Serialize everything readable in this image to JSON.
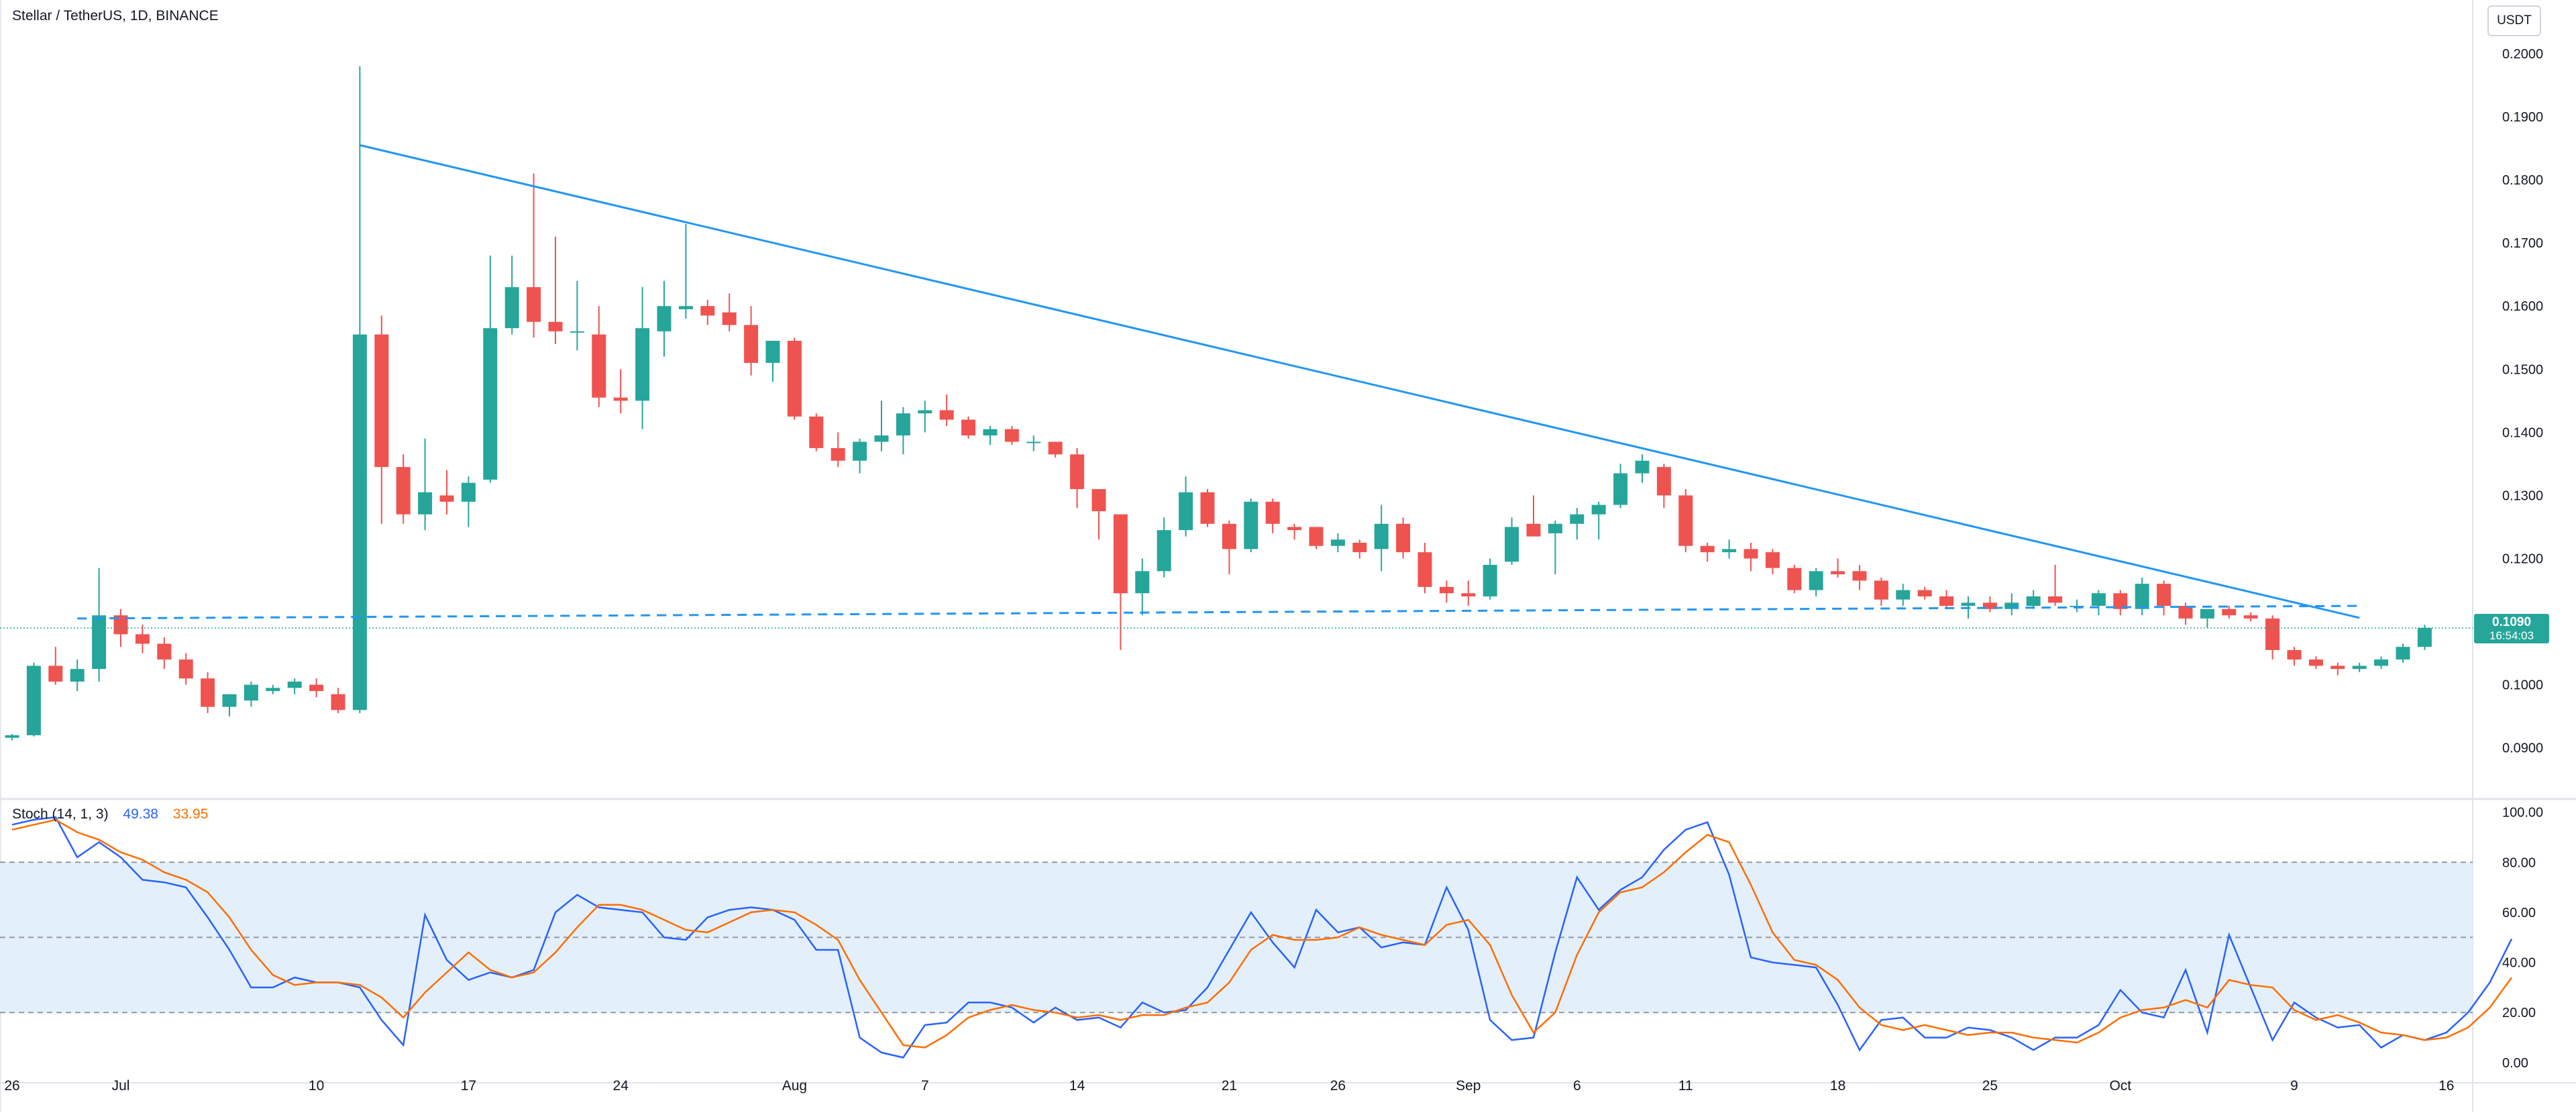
{
  "header": {
    "symbol_line": "Stellar / TetherUS, 1D, BINANCE",
    "currency": "USDT"
  },
  "price_badge": {
    "price": "0.1090",
    "countdown": "16:54:03",
    "color": "#26a69a"
  },
  "stoch_header": {
    "label": "Stoch (14, 1, 3)",
    "k_value": "49.38",
    "d_value": "33.95"
  },
  "colors": {
    "up": "#26a69a",
    "down": "#ef5350",
    "trendline": "#2196f3",
    "stoch_k": "#2962ff",
    "stoch_d": "#ff6d00",
    "band_fill": "#e3f0fb"
  },
  "chart_data": [
    {
      "type": "candlestick",
      "title": "Stellar / TetherUS, 1D, BINANCE",
      "ylim": [
        0.082,
        0.2085
      ],
      "yticks": [
        "0.2000",
        "0.1900",
        "0.1800",
        "0.1700",
        "0.1600",
        "0.1500",
        "0.1400",
        "0.1300",
        "0.1200",
        "0.1100",
        "0.1000",
        "0.0900"
      ],
      "xticks": [
        {
          "label": "26",
          "index": 0
        },
        {
          "label": "Jul",
          "index": 5
        },
        {
          "label": "10",
          "index": 14
        },
        {
          "label": "17",
          "index": 21
        },
        {
          "label": "24",
          "index": 28
        },
        {
          "label": "Aug",
          "index": 36
        },
        {
          "label": "7",
          "index": 42
        },
        {
          "label": "14",
          "index": 49
        },
        {
          "label": "21",
          "index": 56
        },
        {
          "label": "26",
          "index": 61
        },
        {
          "label": "Sep",
          "index": 67
        },
        {
          "label": "6",
          "index": 72
        },
        {
          "label": "11",
          "index": 77
        },
        {
          "label": "18",
          "index": 84
        },
        {
          "label": "25",
          "index": 91
        },
        {
          "label": "Oct",
          "index": 97
        },
        {
          "label": "9",
          "index": 105
        },
        {
          "label": "16",
          "index": 112
        }
      ],
      "ohlc": [
        [
          0.0916,
          0.0922,
          0.0912,
          0.092
        ],
        [
          0.092,
          0.1035,
          0.0918,
          0.103
        ],
        [
          0.103,
          0.106,
          0.1,
          0.1005
        ],
        [
          0.1005,
          0.104,
          0.099,
          0.1025
        ],
        [
          0.1025,
          0.1185,
          0.1005,
          0.111
        ],
        [
          0.111,
          0.112,
          0.106,
          0.108
        ],
        [
          0.108,
          0.1095,
          0.105,
          0.1065
        ],
        [
          0.1065,
          0.1075,
          0.1025,
          0.104
        ],
        [
          0.104,
          0.105,
          0.1,
          0.101
        ],
        [
          0.101,
          0.102,
          0.0955,
          0.0965
        ],
        [
          0.0965,
          0.0985,
          0.095,
          0.0985
        ],
        [
          0.0975,
          0.1005,
          0.0965,
          0.1
        ],
        [
          0.099,
          0.1,
          0.0985,
          0.0995
        ],
        [
          0.0995,
          0.101,
          0.0985,
          0.1005
        ],
        [
          0.1,
          0.101,
          0.098,
          0.099
        ],
        [
          0.0985,
          0.0995,
          0.0955,
          0.096
        ],
        [
          0.096,
          0.198,
          0.0955,
          0.1555
        ],
        [
          0.1555,
          0.1585,
          0.1255,
          0.1345
        ],
        [
          0.1345,
          0.1365,
          0.1255,
          0.127
        ],
        [
          0.127,
          0.139,
          0.1245,
          0.1305
        ],
        [
          0.13,
          0.134,
          0.127,
          0.129
        ],
        [
          0.129,
          0.133,
          0.125,
          0.132
        ],
        [
          0.1325,
          0.168,
          0.132,
          0.1565
        ],
        [
          0.1565,
          0.168,
          0.1555,
          0.163
        ],
        [
          0.163,
          0.181,
          0.155,
          0.1575
        ],
        [
          0.1575,
          0.171,
          0.154,
          0.156
        ],
        [
          0.156,
          0.164,
          0.153,
          0.156
        ],
        [
          0.1555,
          0.16,
          0.144,
          0.1455
        ],
        [
          0.1455,
          0.15,
          0.143,
          0.145
        ],
        [
          0.145,
          0.163,
          0.1405,
          0.1565
        ],
        [
          0.156,
          0.164,
          0.152,
          0.16
        ],
        [
          0.1595,
          0.173,
          0.158,
          0.16
        ],
        [
          0.16,
          0.161,
          0.157,
          0.1585
        ],
        [
          0.159,
          0.162,
          0.156,
          0.157
        ],
        [
          0.157,
          0.16,
          0.149,
          0.151
        ],
        [
          0.151,
          0.154,
          0.148,
          0.1545
        ],
        [
          0.1545,
          0.155,
          0.142,
          0.1425
        ],
        [
          0.1425,
          0.143,
          0.137,
          0.1375
        ],
        [
          0.1375,
          0.14,
          0.1345,
          0.1355
        ],
        [
          0.1355,
          0.139,
          0.1335,
          0.1385
        ],
        [
          0.1385,
          0.145,
          0.137,
          0.1395
        ],
        [
          0.1395,
          0.144,
          0.1365,
          0.143
        ],
        [
          0.143,
          0.145,
          0.14,
          0.1435
        ],
        [
          0.1435,
          0.146,
          0.141,
          0.142
        ],
        [
          0.142,
          0.1425,
          0.139,
          0.1395
        ],
        [
          0.1395,
          0.141,
          0.138,
          0.1405
        ],
        [
          0.1405,
          0.141,
          0.138,
          0.1385
        ],
        [
          0.1385,
          0.1395,
          0.137,
          0.1385
        ],
        [
          0.1385,
          0.1385,
          0.136,
          0.1365
        ],
        [
          0.1365,
          0.1375,
          0.128,
          0.131
        ],
        [
          0.131,
          0.131,
          0.123,
          0.1275
        ],
        [
          0.127,
          0.127,
          0.1055,
          0.1145
        ],
        [
          0.1145,
          0.12,
          0.111,
          0.118
        ],
        [
          0.118,
          0.1265,
          0.117,
          0.1245
        ],
        [
          0.1245,
          0.133,
          0.1235,
          0.1305
        ],
        [
          0.1305,
          0.131,
          0.125,
          0.1255
        ],
        [
          0.1255,
          0.126,
          0.1175,
          0.1215
        ],
        [
          0.1215,
          0.1295,
          0.121,
          0.129
        ],
        [
          0.129,
          0.1295,
          0.124,
          0.1255
        ],
        [
          0.125,
          0.1255,
          0.123,
          0.1245
        ],
        [
          0.125,
          0.125,
          0.1215,
          0.122
        ],
        [
          0.122,
          0.124,
          0.121,
          0.123
        ],
        [
          0.1225,
          0.123,
          0.12,
          0.121
        ],
        [
          0.1215,
          0.1285,
          0.118,
          0.1255
        ],
        [
          0.1255,
          0.1265,
          0.12,
          0.121
        ],
        [
          0.121,
          0.1225,
          0.1145,
          0.1155
        ],
        [
          0.1155,
          0.1165,
          0.113,
          0.1145
        ],
        [
          0.1145,
          0.1165,
          0.1125,
          0.114
        ],
        [
          0.114,
          0.12,
          0.1135,
          0.119
        ],
        [
          0.1195,
          0.1265,
          0.119,
          0.125
        ],
        [
          0.1255,
          0.13,
          0.124,
          0.1235
        ],
        [
          0.124,
          0.126,
          0.1175,
          0.1255
        ],
        [
          0.1255,
          0.128,
          0.123,
          0.127
        ],
        [
          0.127,
          0.129,
          0.123,
          0.1285
        ],
        [
          0.1285,
          0.135,
          0.128,
          0.1335
        ],
        [
          0.1335,
          0.1365,
          0.132,
          0.1355
        ],
        [
          0.1345,
          0.135,
          0.128,
          0.13
        ],
        [
          0.13,
          0.131,
          0.121,
          0.122
        ],
        [
          0.122,
          0.1225,
          0.1195,
          0.121
        ],
        [
          0.121,
          0.123,
          0.12,
          0.1215
        ],
        [
          0.1215,
          0.1225,
          0.118,
          0.12
        ],
        [
          0.121,
          0.1215,
          0.1175,
          0.1185
        ],
        [
          0.1185,
          0.119,
          0.1145,
          0.115
        ],
        [
          0.115,
          0.1185,
          0.114,
          0.118
        ],
        [
          0.118,
          0.12,
          0.117,
          0.1175
        ],
        [
          0.118,
          0.119,
          0.115,
          0.1165
        ],
        [
          0.1165,
          0.117,
          0.1125,
          0.1135
        ],
        [
          0.1135,
          0.116,
          0.1125,
          0.115
        ],
        [
          0.115,
          0.1155,
          0.1135,
          0.114
        ],
        [
          0.114,
          0.115,
          0.112,
          0.1125
        ],
        [
          0.1125,
          0.114,
          0.1105,
          0.113
        ],
        [
          0.113,
          0.114,
          0.1115,
          0.112
        ],
        [
          0.112,
          0.1145,
          0.111,
          0.113
        ],
        [
          0.1125,
          0.115,
          0.112,
          0.114
        ],
        [
          0.114,
          0.119,
          0.1125,
          0.113
        ],
        [
          0.1125,
          0.1135,
          0.1115,
          0.1125
        ],
        [
          0.1125,
          0.115,
          0.111,
          0.1145
        ],
        [
          0.1145,
          0.115,
          0.111,
          0.112
        ],
        [
          0.112,
          0.117,
          0.111,
          0.116
        ],
        [
          0.116,
          0.1165,
          0.111,
          0.1125
        ],
        [
          0.1125,
          0.113,
          0.1095,
          0.1105
        ],
        [
          0.1105,
          0.112,
          0.109,
          0.112
        ],
        [
          0.112,
          0.1125,
          0.1105,
          0.111
        ],
        [
          0.111,
          0.1115,
          0.11,
          0.1105
        ],
        [
          0.1105,
          0.111,
          0.104,
          0.1055
        ],
        [
          0.1055,
          0.106,
          0.103,
          0.104
        ],
        [
          0.104,
          0.1045,
          0.1025,
          0.103
        ],
        [
          0.103,
          0.1035,
          0.1015,
          0.1025
        ],
        [
          0.1025,
          0.1035,
          0.102,
          0.103
        ],
        [
          0.103,
          0.1045,
          0.1025,
          0.104
        ],
        [
          0.104,
          0.1065,
          0.1035,
          0.106
        ],
        [
          0.106,
          0.1095,
          0.1055,
          0.109
        ]
      ],
      "trendline": {
        "from": {
          "index": 16,
          "price": 0.1855
        },
        "to": {
          "index": 108,
          "price": 0.1106
        }
      },
      "support_line": {
        "from": {
          "index": 3,
          "price": 0.1105
        },
        "to": {
          "index": 108,
          "price": 0.1125
        }
      },
      "last_price": 0.109
    },
    {
      "type": "line",
      "title": "Stoch (14, 1, 3)",
      "ylim": [
        -7,
        105
      ],
      "yticks": [
        "100.00",
        "80.00",
        "60.00",
        "40.00",
        "20.00",
        "0.00"
      ],
      "bands": [
        80,
        50,
        20
      ],
      "series": [
        {
          "name": "%K",
          "color": "#2962ff",
          "values": [
            95,
            97,
            98,
            82,
            88,
            82,
            73,
            72,
            70,
            58,
            45,
            30,
            30,
            34,
            32,
            32,
            30,
            17,
            7,
            59,
            41,
            33,
            36,
            34,
            37,
            60,
            67,
            62,
            61,
            60,
            50,
            49,
            58,
            61,
            62,
            61,
            57,
            45,
            45,
            10,
            4,
            2,
            15,
            16,
            24,
            24,
            22,
            16,
            22,
            17,
            18,
            14,
            24,
            20,
            21,
            30,
            45,
            60,
            48,
            38,
            61,
            52,
            54,
            46,
            48,
            47,
            70,
            53,
            17,
            9,
            10,
            44,
            74,
            61,
            69,
            74,
            85,
            93,
            96,
            75,
            42,
            40,
            39,
            38,
            23,
            5,
            17,
            18,
            10,
            10,
            14,
            13,
            10,
            5,
            10,
            10,
            15,
            29,
            20,
            18,
            37,
            12,
            51,
            30,
            9,
            24,
            18,
            14,
            15,
            6,
            11,
            9,
            12,
            20,
            32,
            49.38
          ]
        },
        {
          "name": "%D",
          "color": "#ff6d00",
          "values": [
            93,
            95,
            97,
            92,
            89,
            84,
            81,
            76,
            73,
            68,
            58,
            45,
            35,
            31,
            32,
            32,
            31,
            26,
            18,
            28,
            36,
            44,
            37,
            34,
            36,
            44,
            54,
            63,
            63,
            61,
            57,
            53,
            52,
            56,
            60,
            61,
            60,
            55,
            49,
            33,
            20,
            7,
            6,
            11,
            18,
            21,
            23,
            21,
            20,
            18,
            19,
            17,
            19,
            19,
            22,
            24,
            32,
            45,
            51,
            49,
            49,
            50,
            54,
            51,
            49,
            47,
            55,
            57,
            47,
            27,
            12,
            20,
            43,
            60,
            68,
            70,
            76,
            84,
            91,
            88,
            71,
            52,
            41,
            39,
            33,
            22,
            15,
            13,
            15,
            13,
            11,
            12,
            12,
            10,
            9,
            8,
            12,
            18,
            21,
            22,
            25,
            22,
            33,
            31,
            30,
            21,
            17,
            19,
            16,
            12,
            11,
            9,
            10,
            14,
            22,
            33.95
          ]
        }
      ]
    }
  ]
}
